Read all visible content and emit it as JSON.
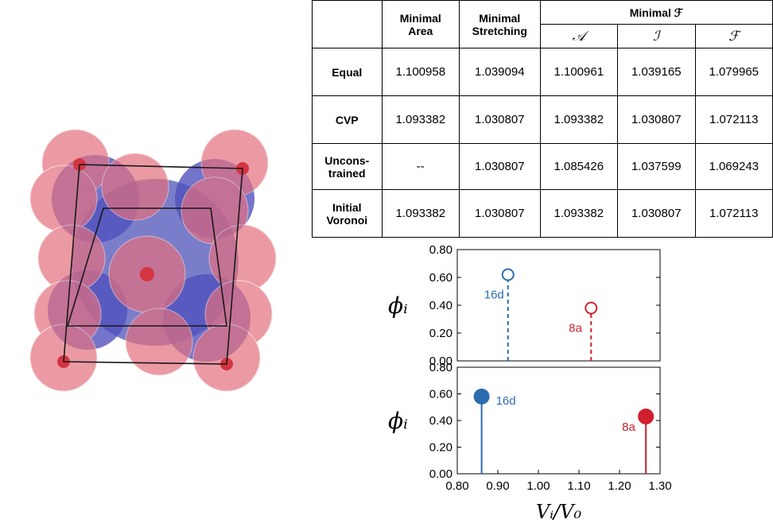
{
  "table": {
    "header": {
      "corner": "",
      "col1": "Minimal\nArea",
      "col2": "Minimal\nStretching",
      "group": "Minimal ℱ",
      "sub": [
        "𝒜",
        "ℐ",
        "ℱ"
      ]
    },
    "rows": [
      [
        "Equal",
        "1.100958",
        "1.039094",
        "1.100961",
        "1.039165",
        "1.079965"
      ],
      [
        "CVP",
        "1.093382",
        "1.030807",
        "1.093382",
        "1.030807",
        "1.072113"
      ],
      [
        "Uncons-\ntrained",
        "--",
        "1.030807",
        "1.085426",
        "1.037599",
        "1.069243"
      ],
      [
        "Initial\nVoronoi",
        "1.093382",
        "1.030807",
        "1.093382",
        "1.030807",
        "1.072113"
      ]
    ]
  },
  "chart_data": [
    {
      "type": "stem",
      "marker": "open",
      "linestyle": "dashed",
      "ylabel": "ϕᵢ",
      "xlim": [
        0.8,
        1.3
      ],
      "ylim": [
        0,
        0.8
      ],
      "yticks": [
        {
          "value": 0,
          "label": "0.00"
        },
        {
          "value": 0.2,
          "label": "0.20"
        },
        {
          "value": 0.4,
          "label": "0.40"
        },
        {
          "value": 0.6,
          "label": "0.60"
        },
        {
          "value": 0.8,
          "label": "0.80"
        }
      ],
      "series": [
        {
          "name": "16d",
          "color": "#2b6cb0",
          "x": [
            0.925
          ],
          "values": [
            0.62
          ]
        },
        {
          "name": "8a",
          "color": "#d0202e",
          "x": [
            1.13
          ],
          "values": [
            0.38
          ]
        }
      ]
    },
    {
      "type": "stem",
      "marker": "filled",
      "linestyle": "solid",
      "ylabel": "ϕᵢ",
      "xlabel": "Vᵢ/V₀",
      "xlim": [
        0.8,
        1.3
      ],
      "ylim": [
        0,
        0.8
      ],
      "xticks": [
        {
          "value": 0.8,
          "label": "0.80"
        },
        {
          "value": 0.9,
          "label": "0.90"
        },
        {
          "value": 1.0,
          "label": "1.00"
        },
        {
          "value": 1.1,
          "label": "1.10"
        },
        {
          "value": 1.2,
          "label": "1.20"
        },
        {
          "value": 1.3,
          "label": "1.30"
        }
      ],
      "yticks": [
        {
          "value": 0,
          "label": "0.00"
        },
        {
          "value": 0.2,
          "label": "0.20"
        },
        {
          "value": 0.4,
          "label": "0.40"
        },
        {
          "value": 0.6,
          "label": "0.60"
        },
        {
          "value": 0.8,
          "label": "0.80"
        }
      ],
      "series": [
        {
          "name": "16d",
          "color": "#2b6cb0",
          "x": [
            0.86
          ],
          "values": [
            0.58
          ]
        },
        {
          "name": "8a",
          "color": "#d0202e",
          "x": [
            1.265
          ],
          "values": [
            0.43
          ]
        }
      ]
    }
  ]
}
